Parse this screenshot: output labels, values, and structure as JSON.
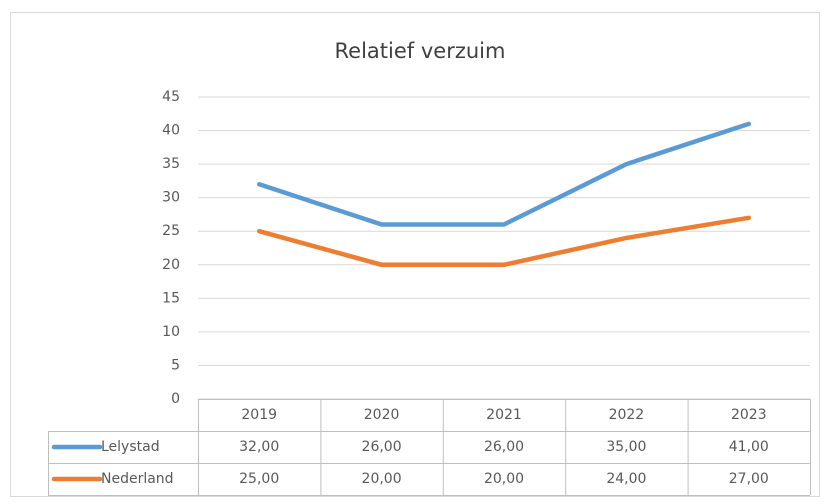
{
  "chart_data": {
    "type": "line",
    "title": "Relatief verzuim",
    "categories": [
      "2019",
      "2020",
      "2021",
      "2022",
      "2023"
    ],
    "series": [
      {
        "name": "Lelystad",
        "color": "#5b9bd5",
        "values": [
          32,
          26,
          26,
          35,
          41
        ],
        "value_labels": [
          "32,00",
          "26,00",
          "26,00",
          "35,00",
          "41,00"
        ]
      },
      {
        "name": "Nederland",
        "color": "#ed7d31",
        "values": [
          25,
          20,
          20,
          24,
          27
        ],
        "value_labels": [
          "25,00",
          "20,00",
          "20,00",
          "24,00",
          "27,00"
        ]
      }
    ],
    "ylim": [
      0,
      45
    ],
    "yticks": [
      0,
      5,
      10,
      15,
      20,
      25,
      30,
      35,
      40,
      45
    ],
    "grid": true
  }
}
